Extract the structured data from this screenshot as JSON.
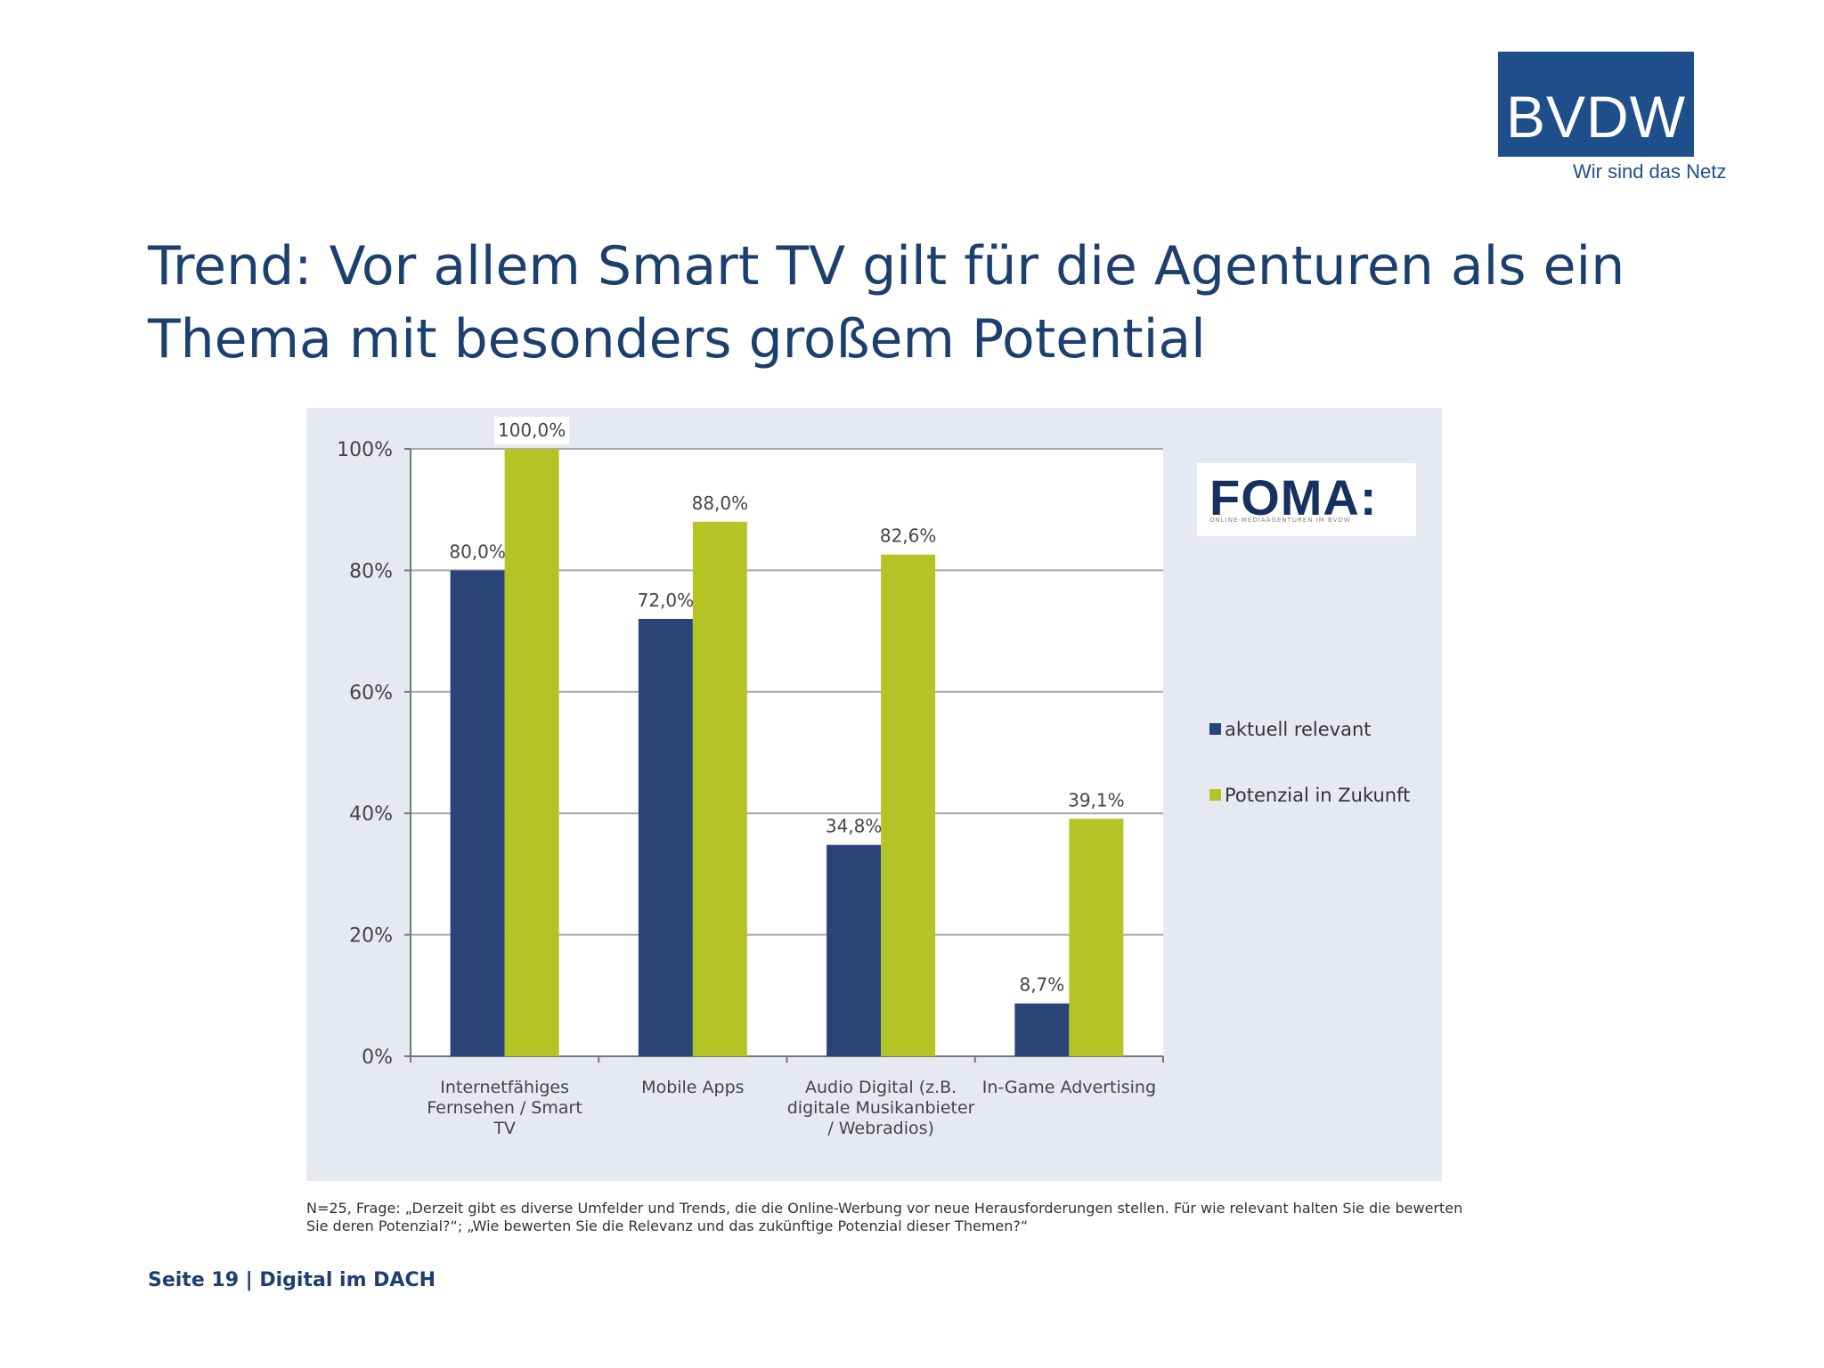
{
  "brand": {
    "logo_text": "BVDW",
    "slogan": "Wir sind das Netz",
    "partner_logo_text": "FOMA:",
    "partner_logo_subtitle": "ONLINE-MEDIAAGENTUREN IM BVDW"
  },
  "slide": {
    "title": "Trend: Vor allem Smart TV gilt für die Agenturen als ein Thema mit besonders großem Potential",
    "footnote": "N=25, Frage: „Derzeit gibt es diverse Umfelder und Trends, die die Online-Werbung vor neue Herausforderungen stellen. Für wie relevant halten Sie die bewerten Sie deren Potenzial?“; „Wie  bewerten Sie die Relevanz und das zukünftige  Potenzial dieser Themen?“",
    "page_footer": "Seite 19 | Digital im DACH"
  },
  "colors": {
    "title": "#1c3f6e",
    "logo_bg": "#1f4f8a",
    "panel_bg": "#e6e9f1",
    "plot_bg": "#ffffff",
    "series_aktuell": "#2b4478",
    "series_potenzial": "#b5c425"
  },
  "chart_data": {
    "type": "bar",
    "categories": [
      [
        "Internetfähiges",
        "Fernsehen / Smart",
        "TV"
      ],
      [
        "Mobile Apps"
      ],
      [
        "Audio Digital (z.B.",
        "digitale Musikanbieter",
        "/ Webradios)"
      ],
      [
        "In-Game Advertising"
      ]
    ],
    "series": [
      {
        "name": "aktuell relevant",
        "values": [
          80.0,
          72.0,
          34.8,
          8.7
        ],
        "labels": [
          "80,0%",
          "72,0%",
          "34,8%",
          "8,7%"
        ]
      },
      {
        "name": "Potenzial in Zukunft",
        "values": [
          100.0,
          88.0,
          82.6,
          39.1
        ],
        "labels": [
          "100,0%",
          "88,0%",
          "82,6%",
          "39,1%"
        ]
      }
    ],
    "yticks": [
      0,
      20,
      40,
      60,
      80,
      100
    ],
    "ytick_labels": [
      "0%",
      "20%",
      "40%",
      "60%",
      "80%",
      "100%"
    ],
    "ylim": [
      0,
      100
    ],
    "grid": true,
    "legend_position": "right"
  }
}
